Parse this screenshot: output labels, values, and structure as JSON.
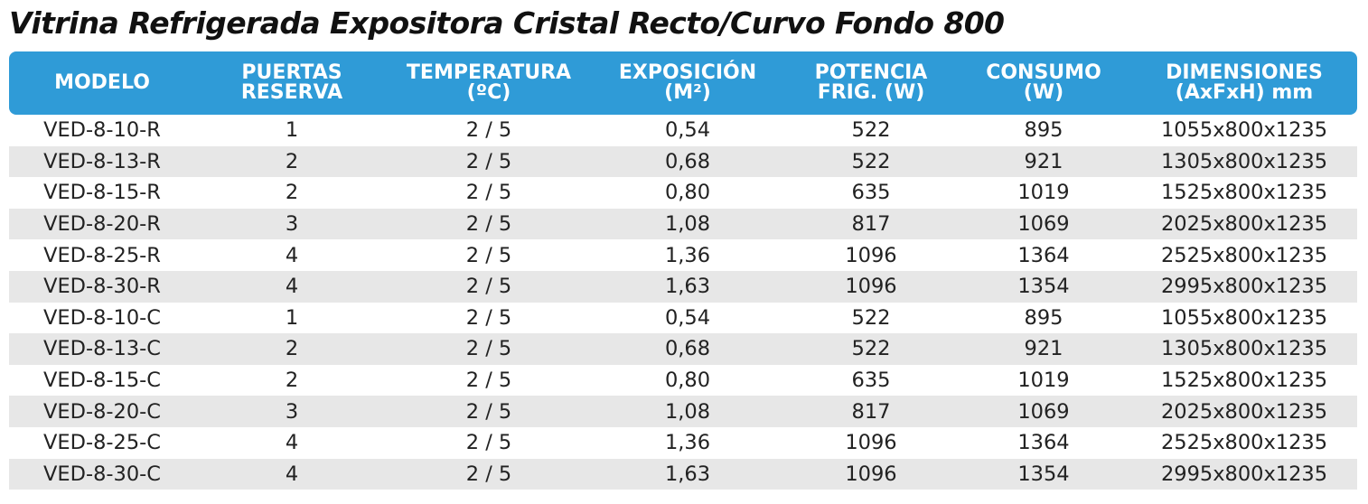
{
  "title": "Vitrina Refrigerada Expositora Cristal Recto/Curvo Fondo 800",
  "headers": [
    {
      "line1": "MODELO",
      "line2": ""
    },
    {
      "line1": "PUERTAS",
      "line2": "RESERVA"
    },
    {
      "line1": "TEMPERATURA",
      "line2": "(ºC)"
    },
    {
      "line1": "EXPOSICIÓN",
      "line2": "(M²)"
    },
    {
      "line1": "POTENCIA",
      "line2": "FRIG. (W)"
    },
    {
      "line1": "CONSUMO",
      "line2": "(W)"
    },
    {
      "line1": "DIMENSIONES",
      "line2": "(AxFxH) mm"
    }
  ],
  "rows": [
    [
      "VED-8-10-R",
      "1",
      "2 / 5",
      "0,54",
      "522",
      "895",
      "1055x800x1235"
    ],
    [
      "VED-8-13-R",
      "2",
      "2 / 5",
      "0,68",
      "522",
      "921",
      "1305x800x1235"
    ],
    [
      "VED-8-15-R",
      "2",
      "2 / 5",
      "0,80",
      "635",
      "1019",
      "1525x800x1235"
    ],
    [
      "VED-8-20-R",
      "3",
      "2 / 5",
      "1,08",
      "817",
      "1069",
      "2025x800x1235"
    ],
    [
      "VED-8-25-R",
      "4",
      "2 / 5",
      "1,36",
      "1096",
      "1364",
      "2525x800x1235"
    ],
    [
      "VED-8-30-R",
      "4",
      "2 / 5",
      "1,63",
      "1096",
      "1354",
      "2995x800x1235"
    ],
    [
      "VED-8-10-C",
      "1",
      "2 / 5",
      "0,54",
      "522",
      "895",
      "1055x800x1235"
    ],
    [
      "VED-8-13-C",
      "2",
      "2 / 5",
      "0,68",
      "522",
      "921",
      "1305x800x1235"
    ],
    [
      "VED-8-15-C",
      "2",
      "2 / 5",
      "0,80",
      "635",
      "1019",
      "1525x800x1235"
    ],
    [
      "VED-8-20-C",
      "3",
      "2 / 5",
      "1,08",
      "817",
      "1069",
      "2025x800x1235"
    ],
    [
      "VED-8-25-C",
      "4",
      "2 / 5",
      "1,36",
      "1096",
      "1364",
      "2525x800x1235"
    ],
    [
      "VED-8-30-C",
      "4",
      "2 / 5",
      "1,63",
      "1096",
      "1354",
      "2995x800x1235"
    ]
  ],
  "colors": {
    "header_bg": "#2f9bd7",
    "stripe_bg": "#e7e7e7",
    "header_text": "#ffffff"
  }
}
